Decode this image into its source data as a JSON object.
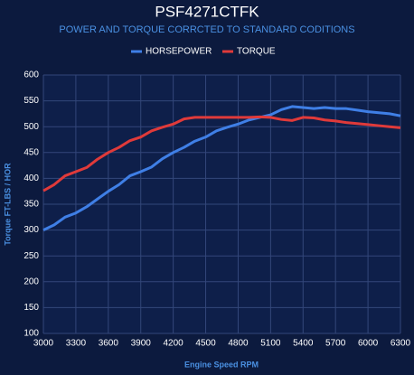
{
  "chart_data": {
    "type": "line",
    "title": "PSF4271CTFK",
    "subtitle": "POWER AND TORQUE CORRCTED TO STANDARD CODITIONS",
    "x_label": "Engine Speed RPM",
    "y_label": "Torque FT-LBS / HOR",
    "x": [
      3000,
      3100,
      3200,
      3300,
      3400,
      3500,
      3600,
      3700,
      3800,
      3900,
      4000,
      4100,
      4200,
      4300,
      4400,
      4500,
      4600,
      4700,
      4800,
      4900,
      5000,
      5100,
      5200,
      5300,
      5400,
      5500,
      5600,
      5700,
      5800,
      5900,
      6000,
      6100,
      6200,
      6300
    ],
    "series": [
      {
        "name": "HORSEPOWER",
        "color": "#3f7fe6",
        "values": [
          300,
          310,
          325,
          333,
          345,
          360,
          375,
          388,
          405,
          413,
          422,
          438,
          450,
          460,
          472,
          480,
          492,
          499,
          505,
          513,
          518,
          523,
          533,
          539,
          537,
          535,
          537,
          535,
          535,
          532,
          529,
          527,
          525,
          521
        ]
      },
      {
        "name": "TORQUE",
        "color": "#e03a3a",
        "values": [
          376,
          388,
          405,
          413,
          421,
          437,
          450,
          460,
          473,
          480,
          492,
          499,
          505,
          515,
          518,
          518,
          518,
          518,
          518,
          518,
          519,
          518,
          514,
          512,
          518,
          517,
          513,
          511,
          508,
          506,
          504,
          502,
          500,
          498
        ]
      }
    ],
    "xlim": [
      3000,
      6300
    ],
    "xticks": [
      3000,
      3300,
      3600,
      3900,
      4200,
      4500,
      4800,
      5100,
      5400,
      5700,
      6000,
      6300
    ],
    "ylim": [
      100,
      600
    ],
    "yticks": [
      100,
      150,
      200,
      250,
      300,
      350,
      400,
      450,
      500,
      550,
      600
    ],
    "grid": true,
    "legend": "top"
  }
}
